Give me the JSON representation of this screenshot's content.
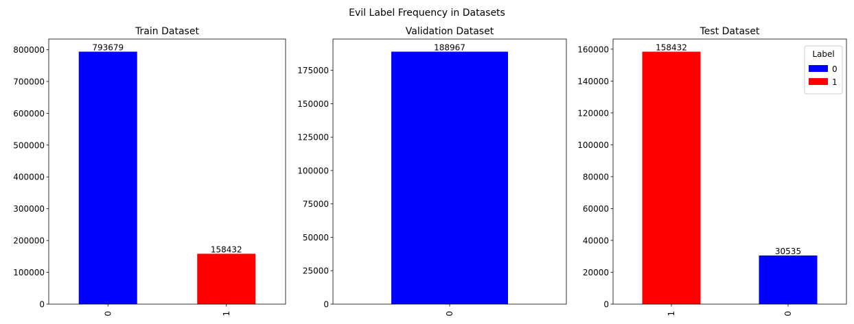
{
  "figure": {
    "suptitle": "Evil Label Frequency in Datasets"
  },
  "colors": {
    "0": "#0000ff",
    "1": "#ff0000"
  },
  "chart_data": [
    {
      "type": "bar",
      "title": "Train Dataset",
      "categories": [
        "0",
        "1"
      ],
      "values": [
        793679,
        158432
      ],
      "data_labels": [
        "793679",
        "158432"
      ],
      "ylim": [
        0,
        833363
      ],
      "yticks": [
        0,
        100000,
        200000,
        300000,
        400000,
        500000,
        600000,
        700000,
        800000
      ],
      "ytick_labels": [
        "0",
        "100000",
        "200000",
        "300000",
        "400000",
        "500000",
        "600000",
        "700000",
        "800000"
      ],
      "xlabel": "",
      "ylabel": "",
      "grid": false
    },
    {
      "type": "bar",
      "title": "Validation Dataset",
      "categories": [
        "0"
      ],
      "values": [
        188967
      ],
      "data_labels": [
        "188967"
      ],
      "ylim": [
        0,
        198415
      ],
      "yticks": [
        0,
        25000,
        50000,
        75000,
        100000,
        125000,
        150000,
        175000
      ],
      "ytick_labels": [
        "0",
        "25000",
        "50000",
        "75000",
        "100000",
        "125000",
        "150000",
        "175000"
      ],
      "xlabel": "",
      "ylabel": "",
      "grid": false
    },
    {
      "type": "bar",
      "title": "Test Dataset",
      "categories": [
        "1",
        "0"
      ],
      "values": [
        158432,
        30535
      ],
      "data_labels": [
        "158432",
        "30535"
      ],
      "ylim": [
        0,
        166354
      ],
      "yticks": [
        0,
        20000,
        40000,
        60000,
        80000,
        100000,
        120000,
        140000,
        160000
      ],
      "ytick_labels": [
        "0",
        "20000",
        "40000",
        "60000",
        "80000",
        "100000",
        "120000",
        "140000",
        "160000"
      ],
      "xlabel": "",
      "ylabel": "",
      "grid": false,
      "legend": {
        "title": "Label",
        "placement": "top-right",
        "entries": [
          {
            "label": "0",
            "color": "#0000ff"
          },
          {
            "label": "1",
            "color": "#ff0000"
          }
        ]
      }
    }
  ]
}
